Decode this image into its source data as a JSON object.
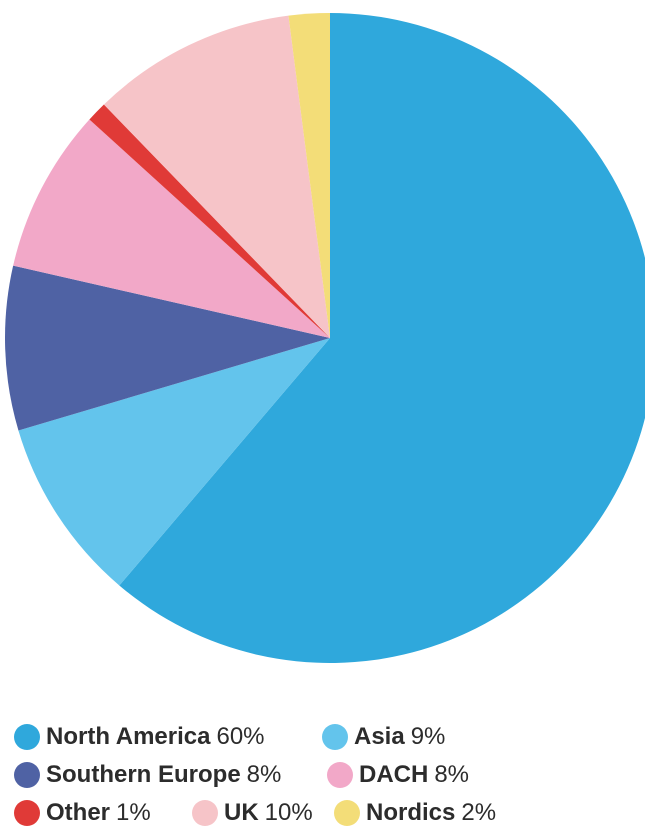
{
  "chart_data": {
    "type": "pie",
    "slices": [
      {
        "label": "North America",
        "value": 60,
        "display": "60%",
        "color": "#2fa8dc"
      },
      {
        "label": "Asia",
        "value": 9,
        "display": "9%",
        "color": "#63c4ec"
      },
      {
        "label": "Southern Europe",
        "value": 8,
        "display": "8%",
        "color": "#4f62a4"
      },
      {
        "label": "DACH",
        "value": 8,
        "display": "8%",
        "color": "#f2a8c8"
      },
      {
        "label": "Other",
        "value": 1,
        "display": "1%",
        "color": "#e03a37"
      },
      {
        "label": "UK",
        "value": 10,
        "display": "10%",
        "color": "#f6c4c8"
      },
      {
        "label": "Nordics",
        "value": 2,
        "display": "2%",
        "color": "#f3dd78"
      }
    ],
    "start": "top",
    "direction": "clockwise",
    "legend_position": "bottom"
  },
  "legend": {
    "rows": [
      [
        {
          "name": "North America",
          "value": "60%",
          "color": "#2fa8dc"
        },
        {
          "name": "Asia",
          "value": "9%",
          "color": "#63c4ec"
        }
      ],
      [
        {
          "name": "Southern Europe",
          "value": "8%",
          "color": "#4f62a4"
        },
        {
          "name": "DACH",
          "value": "8%",
          "color": "#f2a8c8"
        }
      ],
      [
        {
          "name": "Other",
          "value": "1%",
          "color": "#e03a37"
        },
        {
          "name": "UK",
          "value": "10%",
          "color": "#f6c4c8"
        },
        {
          "name": "Nordics",
          "value": "2%",
          "color": "#f3dd78"
        }
      ]
    ]
  }
}
